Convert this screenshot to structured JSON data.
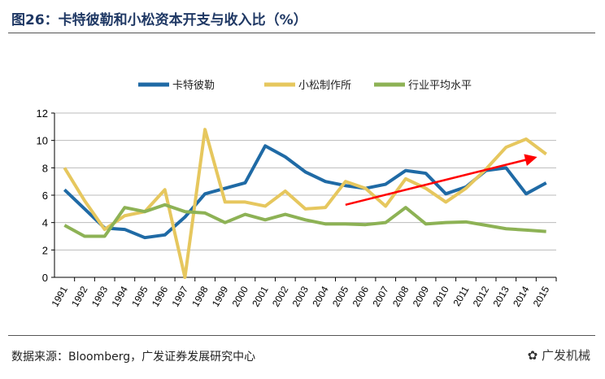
{
  "title": "图26：卡特彼勒和小松资本开支与收入比（%）",
  "source": "数据来源：Bloomberg，广发证券发展研究中心",
  "logo": "广发机械",
  "chart_data": {
    "type": "line",
    "title": "",
    "xlabel": "",
    "ylabel": "",
    "ylim": [
      0,
      12
    ],
    "yticks": [
      "0",
      "2",
      "4",
      "6",
      "8",
      "10",
      "12"
    ],
    "grid": true,
    "legend": "top",
    "categories": [
      "1991",
      "1992",
      "1993",
      "1994",
      "1995",
      "1996",
      "1997",
      "1998",
      "1999",
      "2000",
      "2001",
      "2002",
      "2003",
      "2004",
      "2005",
      "2006",
      "2007",
      "2008",
      "2009",
      "2010",
      "2011",
      "2012",
      "2013",
      "2014",
      "2015"
    ],
    "series": [
      {
        "name": "卡特彼勒",
        "color": "#1f6aa5",
        "values": [
          6.4,
          5.0,
          3.6,
          3.5,
          2.9,
          3.1,
          4.4,
          6.1,
          6.5,
          6.9,
          9.6,
          8.8,
          7.7,
          7.0,
          6.7,
          6.5,
          6.8,
          7.8,
          7.6,
          6.1,
          6.6,
          7.8,
          8.0,
          6.1,
          6.9
        ]
      },
      {
        "name": "小松制作所",
        "color": "#e6c75e",
        "values": [
          8.0,
          5.6,
          3.5,
          4.5,
          4.8,
          6.4,
          0,
          10.8,
          5.5,
          5.5,
          5.2,
          6.3,
          5.0,
          5.1,
          7.0,
          6.5,
          5.2,
          7.2,
          6.5,
          5.5,
          6.5,
          7.9,
          9.5,
          10.1,
          9.0
        ]
      },
      {
        "name": "行业平均水平",
        "color": "#8db255",
        "values": [
          3.8,
          3.0,
          3.0,
          5.1,
          4.8,
          5.3,
          4.8,
          4.7,
          4.0,
          4.6,
          4.2,
          4.6,
          4.2,
          3.9,
          3.9,
          3.85,
          4.0,
          5.1,
          3.9,
          4.0,
          4.05,
          3.8,
          3.55,
          3.45,
          3.35
        ]
      }
    ],
    "annotations": [
      {
        "type": "arrow",
        "color": "#ff0000",
        "from": [
          "2005",
          5.3
        ],
        "to": [
          "2014.5",
          8.8
        ]
      }
    ]
  }
}
